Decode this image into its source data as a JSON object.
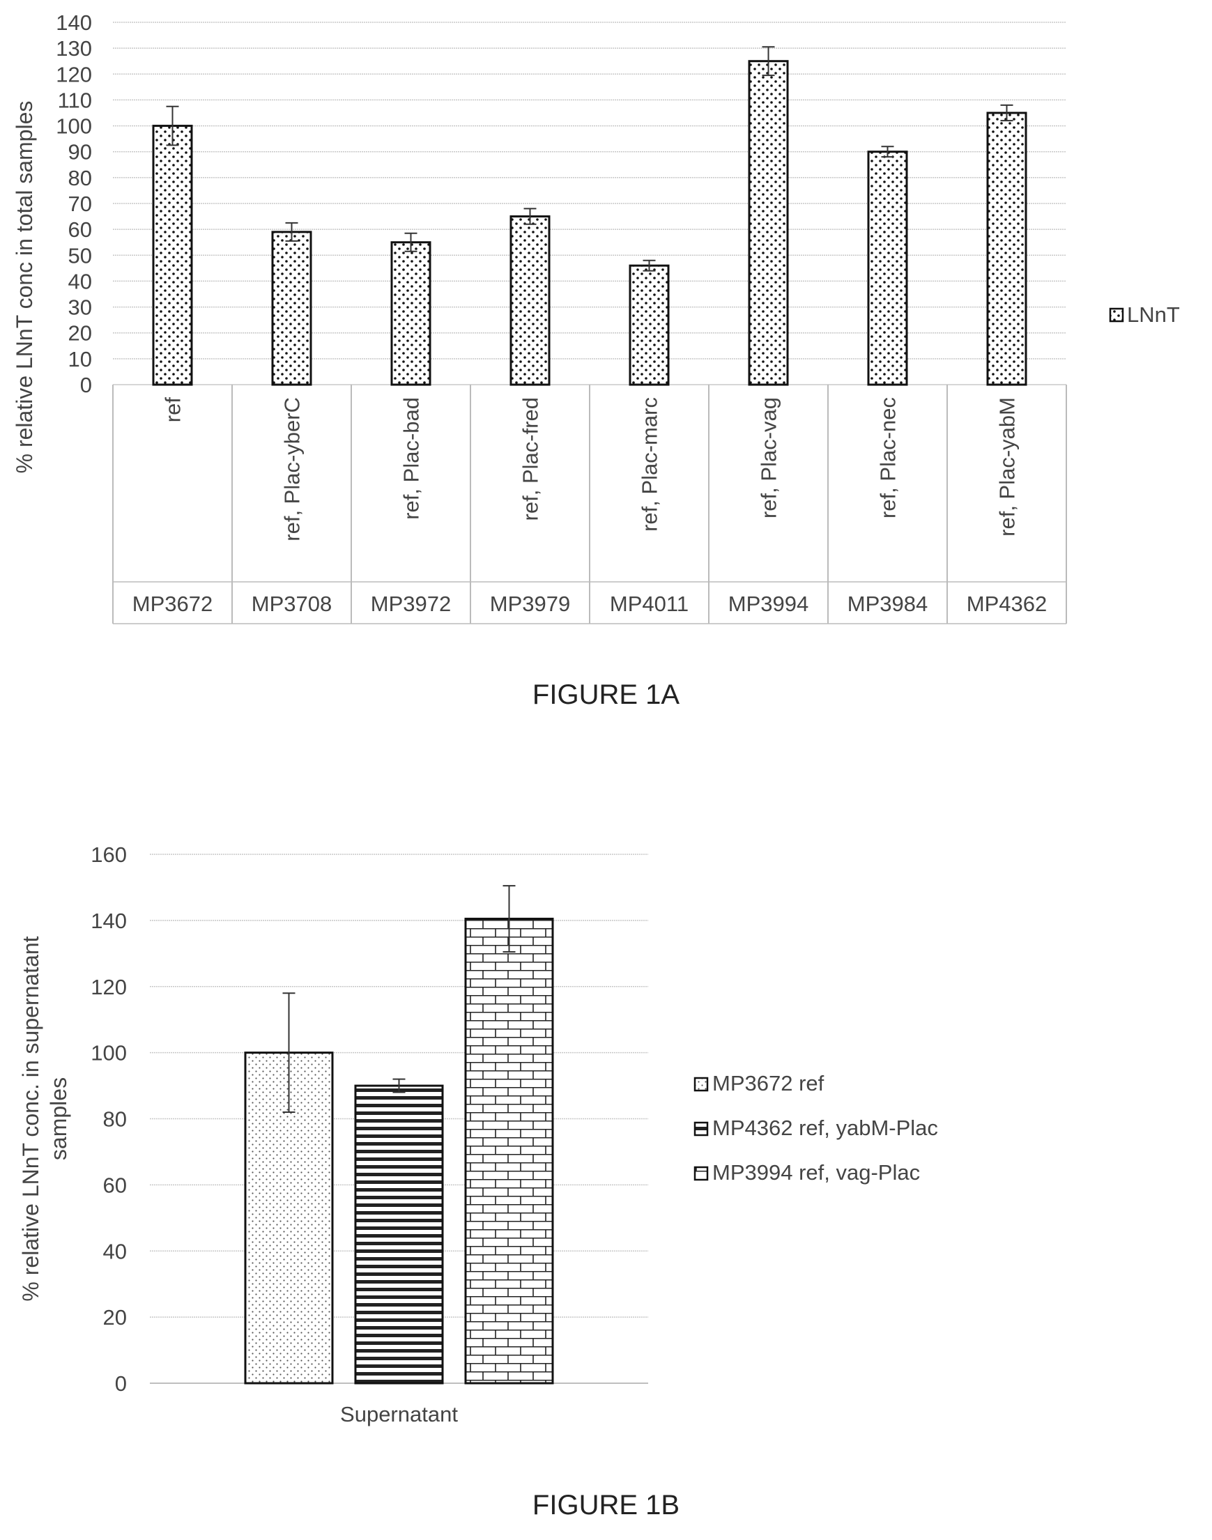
{
  "figures": [
    {
      "caption": "FIGURE 1A"
    },
    {
      "caption": "FIGURE 1B"
    }
  ],
  "chart_data": [
    {
      "type": "bar",
      "ylabel": "% relative LNnT conc in total samples",
      "ylim": [
        0,
        140
      ],
      "yticks": [
        0,
        10,
        20,
        30,
        40,
        50,
        60,
        70,
        80,
        90,
        100,
        110,
        120,
        130,
        140
      ],
      "grid": true,
      "legend_position": "right",
      "categories": [
        {
          "label": "ref",
          "strain": "MP3672"
        },
        {
          "label": "ref, Plac-yberC",
          "strain": "MP3708"
        },
        {
          "label": "ref, Plac-bad",
          "strain": "MP3972"
        },
        {
          "label": "ref, Plac-fred",
          "strain": "MP3979"
        },
        {
          "label": "ref, Plac-marc",
          "strain": "MP4011"
        },
        {
          "label": "ref, Plac-vag",
          "strain": "MP3994"
        },
        {
          "label": "ref, Plac-nec",
          "strain": "MP3984"
        },
        {
          "label": "ref, Plac-yabM",
          "strain": "MP4362"
        }
      ],
      "series": [
        {
          "name": "LNnT",
          "pattern": "dots",
          "values": [
            100,
            59,
            55,
            65,
            46,
            125,
            90,
            105
          ],
          "errors": [
            7.5,
            3.5,
            3.5,
            3,
            2,
            5.5,
            2,
            3
          ]
        }
      ]
    },
    {
      "type": "bar",
      "ylabel": "% relative LNnT conc. in supernatant samples",
      "ylim": [
        0,
        160
      ],
      "yticks": [
        0,
        20,
        40,
        60,
        80,
        100,
        120,
        140,
        160
      ],
      "grid": true,
      "legend_position": "right",
      "categories": [
        "Supernatant"
      ],
      "series": [
        {
          "name": "MP3672 ref",
          "pattern": "fine-dots",
          "values": [
            100
          ],
          "errors": [
            18
          ]
        },
        {
          "name": "MP4362 ref, yabM-Plac",
          "pattern": "horizontal-stripes",
          "values": [
            90
          ],
          "errors": [
            2
          ]
        },
        {
          "name": "MP3994 ref, vag-Plac",
          "pattern": "bricks",
          "values": [
            140.5
          ],
          "errors": [
            10
          ]
        }
      ]
    }
  ]
}
